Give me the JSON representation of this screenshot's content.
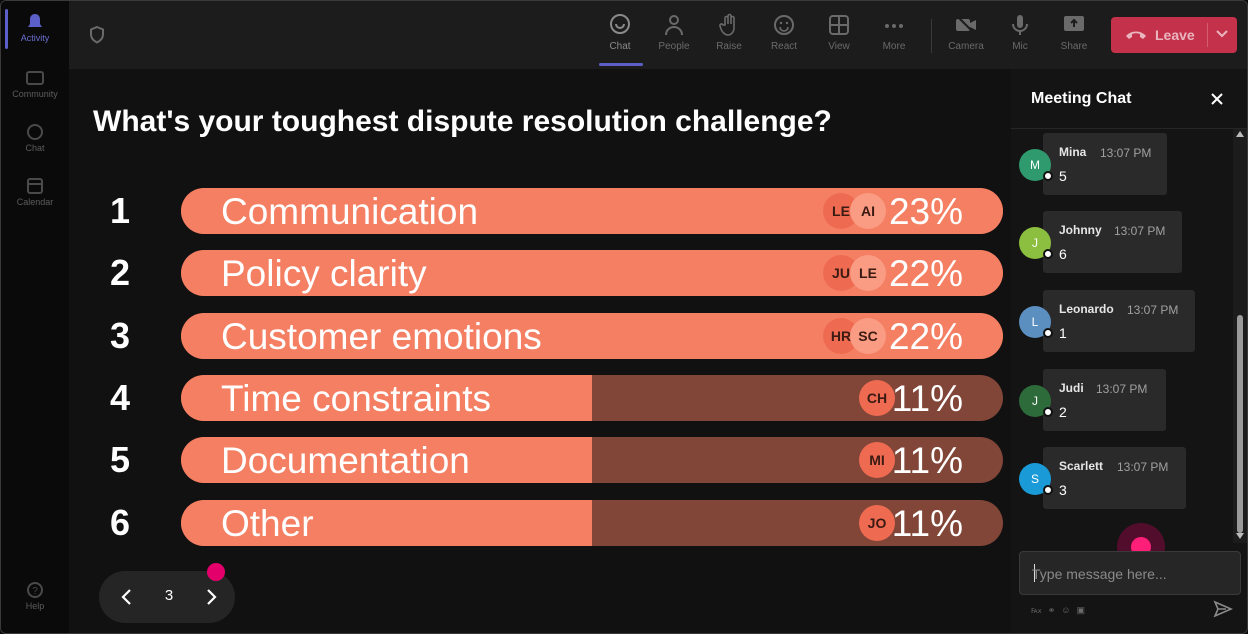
{
  "rail": {
    "items": [
      {
        "label": "Activity",
        "icon": "bell-icon"
      },
      {
        "label": "Community",
        "icon": "community-icon"
      },
      {
        "label": "Chat",
        "icon": "chat-icon"
      },
      {
        "label": "Calendar",
        "icon": "calendar-icon"
      },
      {
        "label": "Help",
        "icon": "help-icon"
      }
    ]
  },
  "toolbar": {
    "chat": "Chat",
    "people": "People",
    "raise": "Raise",
    "react": "React",
    "view": "View",
    "more": "More",
    "camera": "Camera",
    "mic": "Mic",
    "share": "Share",
    "leave": "Leave"
  },
  "poll": {
    "question": "What's your toughest dispute resolution challenge?",
    "options": [
      {
        "num": "1",
        "label": "Communication",
        "percent": 23,
        "pct_text": "23%",
        "voters": [
          "LE",
          "AI"
        ]
      },
      {
        "num": "2",
        "label": "Policy clarity",
        "percent": 22,
        "pct_text": "22%",
        "voters": [
          "JU",
          "LE"
        ]
      },
      {
        "num": "3",
        "label": "Customer emotions",
        "percent": 22,
        "pct_text": "22%",
        "voters": [
          "HR",
          "SC"
        ]
      },
      {
        "num": "4",
        "label": "Time constraints",
        "percent": 11,
        "pct_text": "11%",
        "voters": [
          "CH"
        ]
      },
      {
        "num": "5",
        "label": "Documentation",
        "percent": 11,
        "pct_text": "11%",
        "voters": [
          "MI"
        ]
      },
      {
        "num": "6",
        "label": "Other",
        "percent": 11,
        "pct_text": "11%",
        "voters": [
          "JO"
        ]
      }
    ]
  },
  "pager": {
    "page": "3"
  },
  "chat": {
    "title": "Meeting Chat",
    "messages": [
      {
        "initial": "M",
        "name": "Mina",
        "time": "13:07 PM",
        "text": "5",
        "color": "#2e9a6e"
      },
      {
        "initial": "J",
        "name": "Johnny",
        "time": "13:07 PM",
        "text": "6",
        "color": "#8cbf3f"
      },
      {
        "initial": "L",
        "name": "Leonardo",
        "time": "13:07 PM",
        "text": "1",
        "color": "#5b8fbf"
      },
      {
        "initial": "J",
        "name": "Judi",
        "time": "13:07 PM",
        "text": "2",
        "color": "#2e6b3a"
      },
      {
        "initial": "S",
        "name": "Scarlett",
        "time": "13:07 PM",
        "text": "3",
        "color": "#1a9bd7"
      }
    ],
    "placeholder": "Type message here..."
  },
  "colors": {
    "bar_fill": "#f47f62",
    "bar_track": "#814638",
    "leave": "#c4314b",
    "accent": "#5b5fc7"
  }
}
